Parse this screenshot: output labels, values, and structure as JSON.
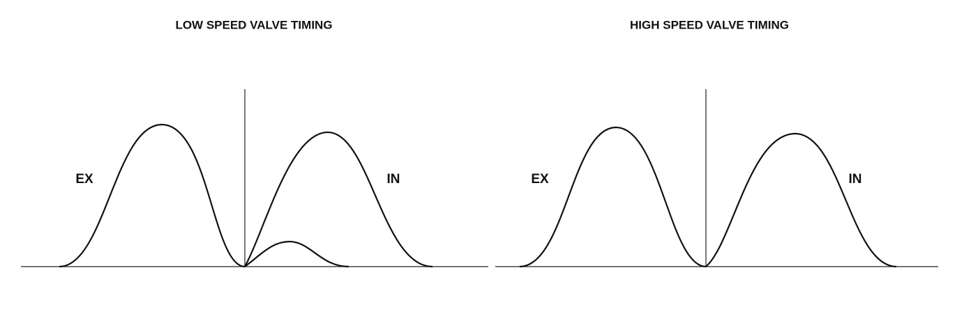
{
  "panels": [
    {
      "title": "LOW SPEED VALVE TIMING",
      "labels": {
        "exhaust": "EX",
        "intake": "IN"
      }
    },
    {
      "title": "HIGH SPEED VALVE TIMING",
      "labels": {
        "exhaust": "EX",
        "intake": "IN"
      }
    }
  ]
}
